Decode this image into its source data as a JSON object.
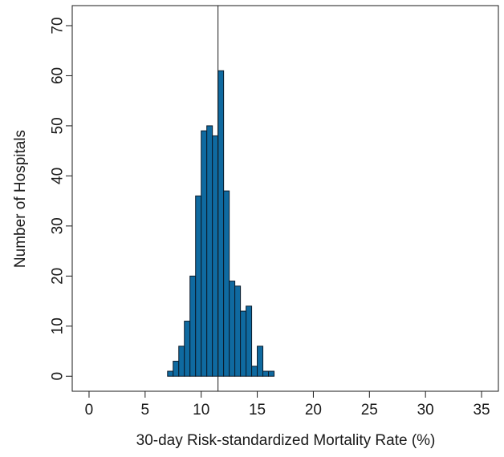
{
  "chart_data": {
    "type": "bar",
    "subtype": "histogram",
    "title": "",
    "xlabel": "30-day Risk-standardized Mortality Rate (%)",
    "ylabel": "Number of Hospitals",
    "xlim": [
      -1.5,
      36.5
    ],
    "ylim": [
      -3,
      74
    ],
    "xticks": [
      0,
      5,
      10,
      15,
      20,
      25,
      30,
      35
    ],
    "yticks": [
      0,
      10,
      20,
      30,
      40,
      50,
      60,
      70
    ],
    "bin_width": 0.5,
    "bins": [
      {
        "x0": 7.0,
        "count": 1
      },
      {
        "x0": 7.5,
        "count": 3
      },
      {
        "x0": 8.0,
        "count": 6
      },
      {
        "x0": 8.5,
        "count": 11
      },
      {
        "x0": 9.0,
        "count": 20
      },
      {
        "x0": 9.5,
        "count": 36
      },
      {
        "x0": 10.0,
        "count": 49
      },
      {
        "x0": 10.5,
        "count": 50
      },
      {
        "x0": 11.0,
        "count": 48
      },
      {
        "x0": 11.5,
        "count": 61
      },
      {
        "x0": 12.0,
        "count": 37
      },
      {
        "x0": 12.5,
        "count": 19
      },
      {
        "x0": 13.0,
        "count": 18
      },
      {
        "x0": 13.5,
        "count": 13
      },
      {
        "x0": 14.0,
        "count": 14
      },
      {
        "x0": 14.5,
        "count": 2
      },
      {
        "x0": 15.0,
        "count": 6
      },
      {
        "x0": 15.5,
        "count": 1
      },
      {
        "x0": 16.0,
        "count": 1
      }
    ],
    "reference_line_x": 11.5,
    "bar_color": "#0f6aa0",
    "bar_edge_color": "#0a1a2a",
    "grid": false,
    "legend": "none"
  }
}
